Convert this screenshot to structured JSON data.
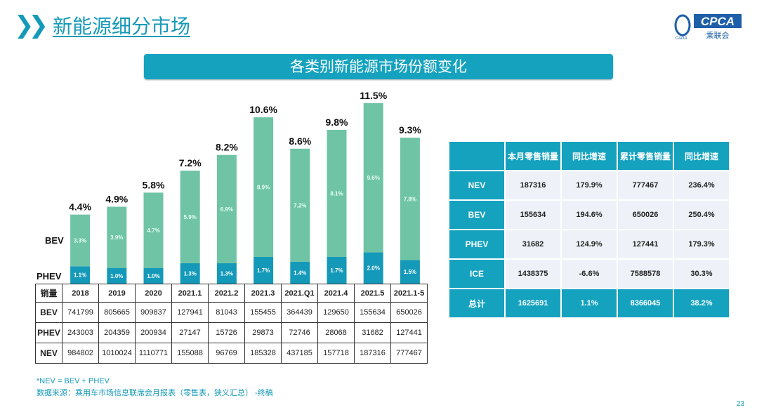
{
  "header": {
    "title": "新能源细分市场",
    "banner": "各类别新能源市场份额变化",
    "logo_text": "CPCA",
    "logo_sub": "乘联会",
    "logo_small": "CADA"
  },
  "chart_data": {
    "type": "bar",
    "stacked": true,
    "categories": [
      "2018",
      "2019",
      "2020",
      "2021.1",
      "2021.2",
      "2021.3",
      "2021.Q1",
      "2021.4",
      "2021.5",
      "2021.1-5"
    ],
    "series": [
      {
        "name": "PHEV",
        "values": [
          1.1,
          1.0,
          1.0,
          1.3,
          1.3,
          1.7,
          1.4,
          1.7,
          2.0,
          1.5
        ],
        "labels": [
          "1.1%",
          "1.0%",
          "1.0%",
          "1.3%",
          "1.3%",
          "1.7%",
          "1.4%",
          "1.7%",
          "2.0%",
          "1.5%"
        ],
        "color": "#1599b8"
      },
      {
        "name": "BEV",
        "values": [
          3.3,
          3.9,
          4.7,
          5.9,
          6.9,
          8.9,
          7.2,
          8.1,
          9.6,
          7.8
        ],
        "labels": [
          "3.3%",
          "3.9%",
          "4.7%",
          "5.9%",
          "6.9%",
          "8.9%",
          "7.2%",
          "8.1%",
          "9.6%",
          "7.8%"
        ],
        "color": "#6fc4a5"
      }
    ],
    "totals": [
      "4.4%",
      "4.9%",
      "5.8%",
      "7.2%",
      "8.2%",
      "10.6%",
      "8.6%",
      "9.8%",
      "11.5%",
      "9.3%"
    ],
    "total_values": [
      4.4,
      4.9,
      5.8,
      7.2,
      8.2,
      10.6,
      8.6,
      9.8,
      11.5,
      9.3
    ],
    "ylim": [
      0,
      11.5
    ],
    "grid": false
  },
  "sales_table": {
    "header": [
      "销量",
      "2018",
      "2019",
      "2020",
      "2021.1",
      "2021.2",
      "2021.3",
      "2021.Q1",
      "2021.4",
      "2021.5",
      "2021.1-5"
    ],
    "rows": [
      [
        "BEV",
        "741799",
        "805665",
        "909837",
        "127941",
        "81043",
        "155455",
        "364439",
        "129650",
        "155634",
        "650026"
      ],
      [
        "PHEV",
        "243003",
        "204359",
        "200934",
        "27147",
        "15726",
        "29873",
        "72746",
        "28068",
        "31682",
        "127441"
      ],
      [
        "NEV",
        "984802",
        "1010024",
        "1110771",
        "155088",
        "96769",
        "185328",
        "437185",
        "157718",
        "187316",
        "777467"
      ]
    ]
  },
  "summary_table": {
    "header": [
      "",
      "本月零售销量",
      "同比增速",
      "累计零售销量",
      "同比增速"
    ],
    "rows": [
      [
        "NEV",
        "187316",
        "179.9%",
        "777467",
        "236.4%"
      ],
      [
        "BEV",
        "155634",
        "194.6%",
        "650026",
        "250.4%"
      ],
      [
        "PHEV",
        "31682",
        "124.9%",
        "127441",
        "179.3%"
      ],
      [
        "ICE",
        "1438375",
        "-6.6%",
        "7588578",
        "30.3%"
      ]
    ],
    "total": [
      "总计",
      "1625691",
      "1.1%",
      "8366045",
      "38.2%"
    ]
  },
  "notes": {
    "formula": "*NEV = BEV + PHEV",
    "source": "数据来源：乘用车市场信息联席会月报表（零售表，狭义汇总） -终稿"
  },
  "page_number": "23"
}
